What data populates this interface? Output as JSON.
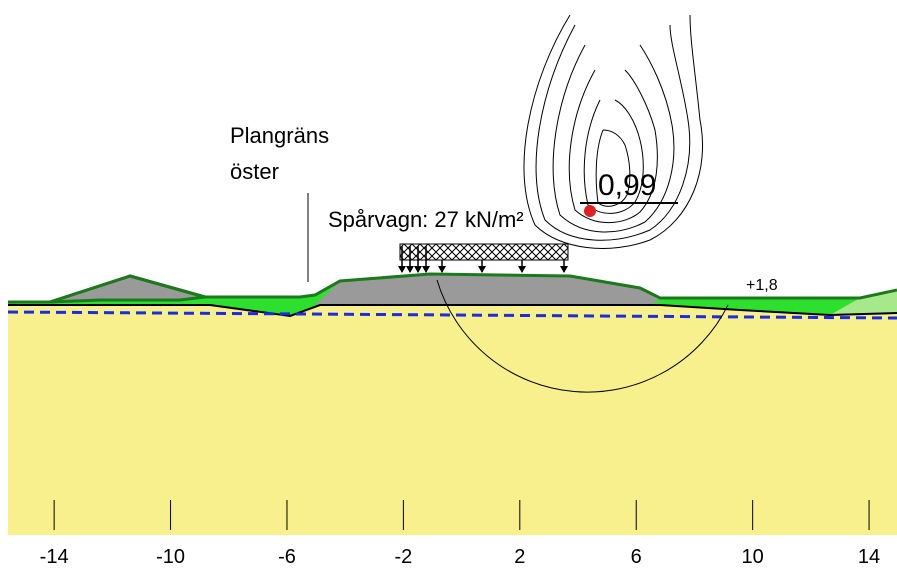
{
  "labels": {
    "boundary_line1": "Plangräns",
    "boundary_line2": "öster",
    "load": "Spårvagn: 27 kN/m²",
    "safety_factor": "0,99",
    "level": "+1,8"
  },
  "axis": {
    "xlim": [
      -15.86,
      14.96
    ],
    "ticks": [
      -14,
      -10,
      -6,
      -2,
      2,
      6,
      10,
      14
    ]
  }
}
